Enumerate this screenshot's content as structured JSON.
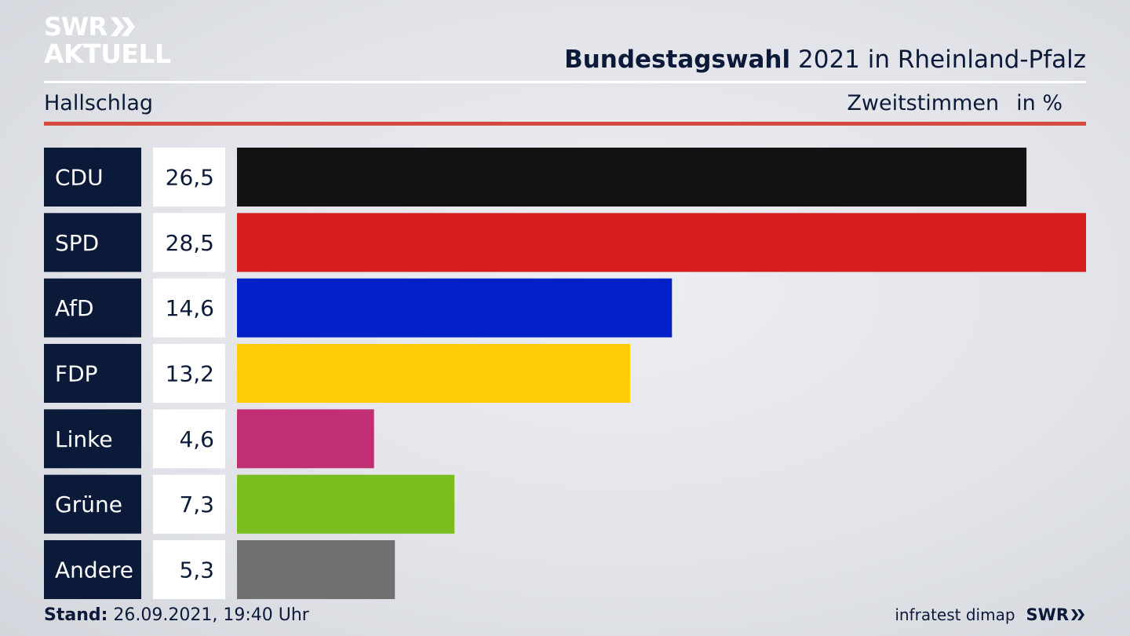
{
  "logo": {
    "line1": "SWR",
    "line2": "AKTUELL"
  },
  "header": {
    "title_bold": "Bundestagswahl",
    "title_rest": "2021 in Rheinland-Pfalz",
    "location": "Hallschlag",
    "measure": "Zweitstimmen",
    "unit": "in %"
  },
  "chart_data": {
    "type": "bar",
    "orientation": "horizontal",
    "categories": [
      "CDU",
      "SPD",
      "AfD",
      "FDP",
      "Linke",
      "Grüne",
      "Andere"
    ],
    "values": [
      26.5,
      28.5,
      14.6,
      13.2,
      4.6,
      7.3,
      5.3
    ],
    "value_labels": [
      "26,5",
      "28,5",
      "14,6",
      "13,2",
      "4,6",
      "7,3",
      "5,3"
    ],
    "colors": [
      "#121212",
      "#d81f20",
      "#0220c8",
      "#ffcc07",
      "#c02f73",
      "#78be1e",
      "#707070"
    ],
    "xlim": [
      0,
      28.5
    ],
    "grid": false,
    "legend": "none"
  },
  "footer": {
    "stand_label": "Stand:",
    "stand_value": "26.09.2021, 19:40 Uhr",
    "source": "infratest dimap",
    "brand": "SWR"
  }
}
